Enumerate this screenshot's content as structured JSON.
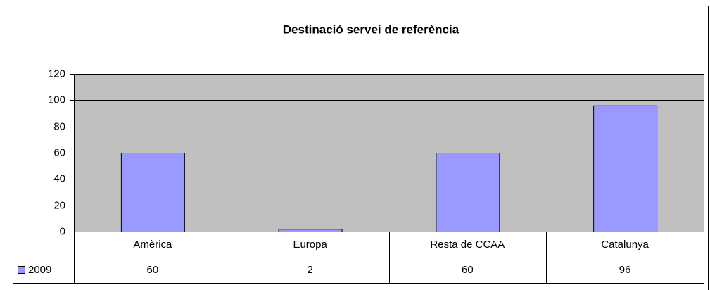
{
  "chart_data": {
    "type": "bar",
    "title": "Destinació servei de referència",
    "categories": [
      "Amèrica",
      "Europa",
      "Resta de CCAA",
      "Catalunya"
    ],
    "series": [
      {
        "name": "2009",
        "color": "#9999ff",
        "values": [
          60,
          2,
          60,
          96
        ]
      }
    ],
    "ylim": [
      0,
      120
    ],
    "yticks": [
      0,
      20,
      40,
      60,
      80,
      100,
      120
    ],
    "grid": true,
    "plot_background": "#c0c0c0"
  }
}
